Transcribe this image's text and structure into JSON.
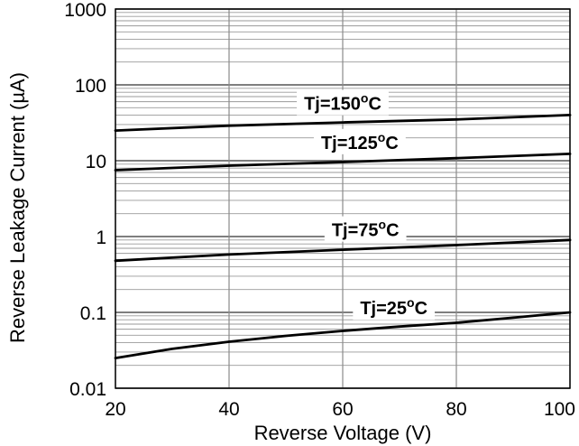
{
  "chart_data": {
    "type": "line",
    "title": "",
    "xlabel": "Reverse Voltage (V)",
    "ylabel": "Reverse Leakage Current (µA)",
    "xlim": [
      20,
      100
    ],
    "ylim": [
      0.01,
      1000
    ],
    "yscale": "log",
    "x_ticks": [
      20,
      40,
      60,
      80,
      100
    ],
    "x_tick_labels": [
      "20",
      "40",
      "60",
      "80",
      "100"
    ],
    "y_ticks": [
      0.01,
      0.1,
      1,
      10,
      100,
      1000
    ],
    "y_tick_labels": [
      "0.01",
      "0.1",
      "1",
      "10",
      "100",
      "1000"
    ],
    "grid": "major and minor",
    "legend": "none",
    "series": [
      {
        "label_main": "Tj=150",
        "label_sup": "o",
        "label_unit": "C",
        "label_x": 60,
        "color": "#000000",
        "x": [
          20,
          40,
          60,
          80,
          100
        ],
        "y": [
          25,
          29,
          32,
          35,
          40
        ]
      },
      {
        "label_main": "Tj=125",
        "label_sup": "o",
        "label_unit": "C",
        "label_x": 63,
        "color": "#000000",
        "x": [
          20,
          40,
          60,
          80,
          100
        ],
        "y": [
          7.5,
          8.6,
          9.6,
          10.8,
          12.3
        ]
      },
      {
        "label_main": "Tj=75",
        "label_sup": "o",
        "label_unit": "C",
        "label_x": 64,
        "color": "#000000",
        "x": [
          20,
          40,
          60,
          80,
          100
        ],
        "y": [
          0.48,
          0.58,
          0.67,
          0.77,
          0.9
        ]
      },
      {
        "label_main": "Tj=25",
        "label_sup": "o",
        "label_unit": "C",
        "label_x": 69,
        "color": "#000000",
        "x": [
          20,
          30,
          40,
          50,
          60,
          70,
          80,
          90,
          100
        ],
        "y": [
          0.025,
          0.033,
          0.041,
          0.049,
          0.057,
          0.065,
          0.073,
          0.085,
          0.1
        ]
      }
    ]
  }
}
